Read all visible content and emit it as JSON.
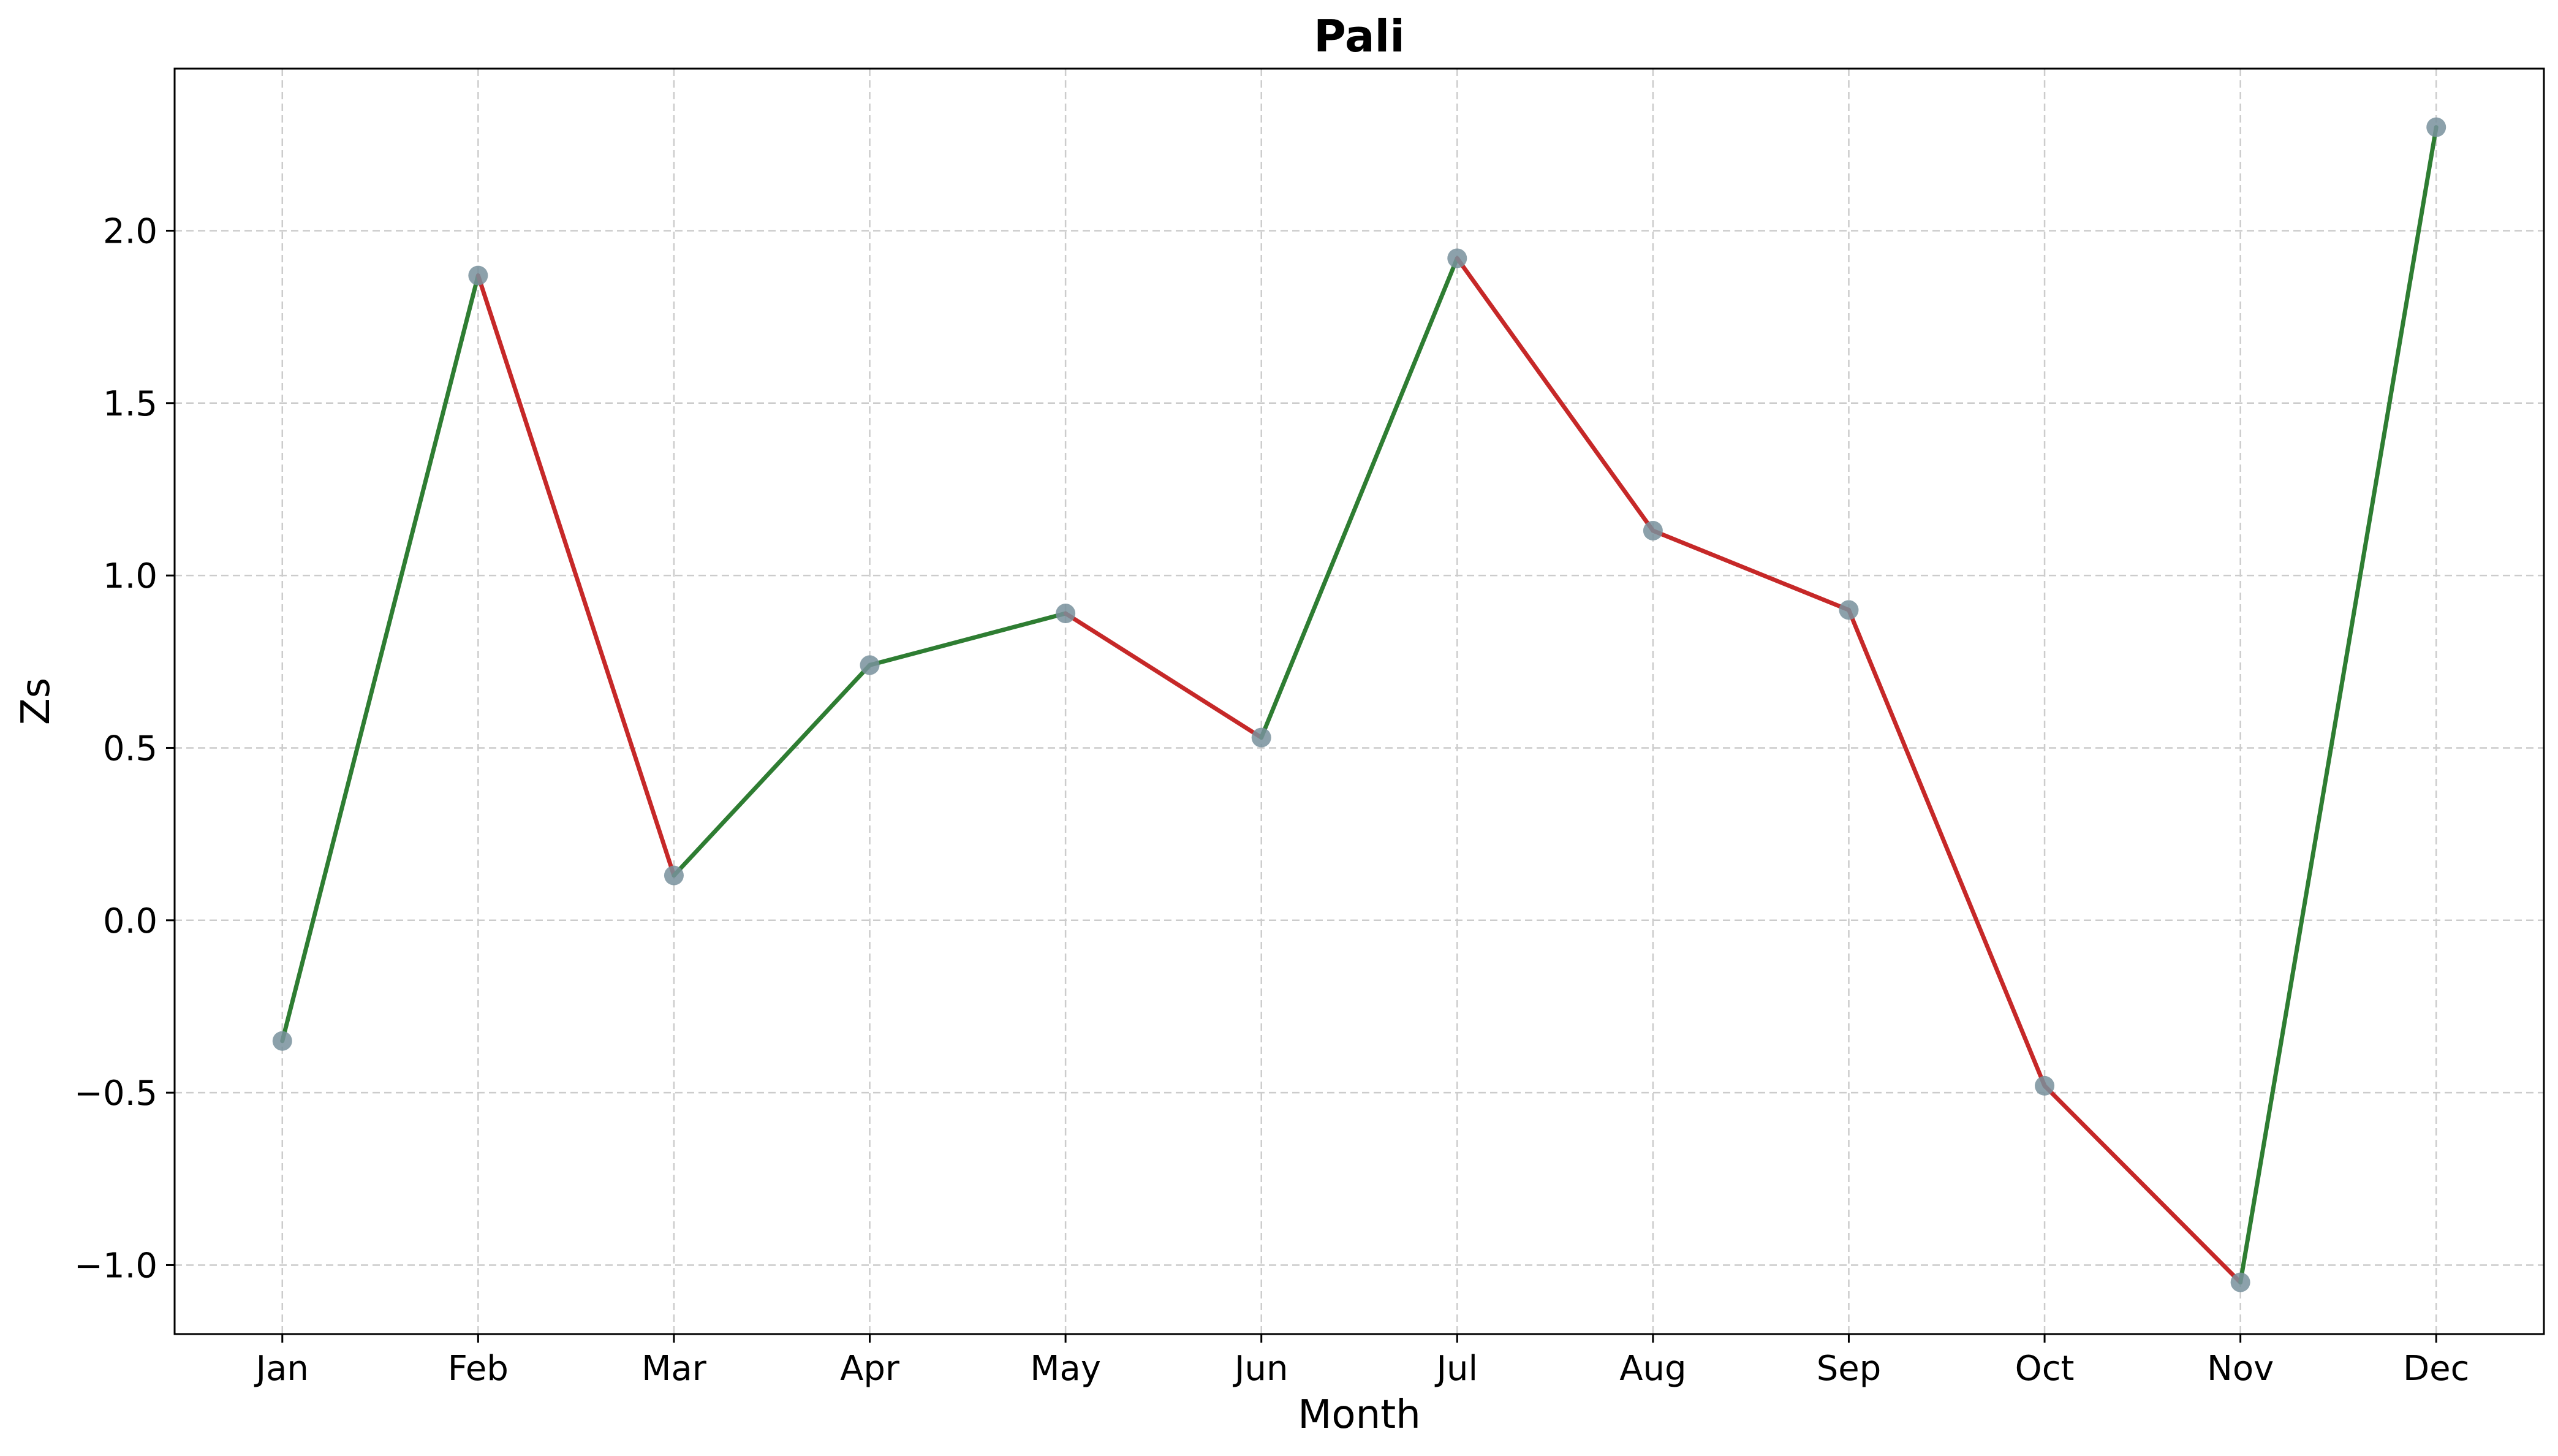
{
  "chart_data": {
    "type": "line",
    "title": "Pali",
    "xlabel": "Month",
    "ylabel": "Zs",
    "categories": [
      "Jan",
      "Feb",
      "Mar",
      "Apr",
      "May",
      "Jun",
      "Jul",
      "Aug",
      "Sep",
      "Oct",
      "Nov",
      "Dec"
    ],
    "series": [
      {
        "values": [
          -0.35,
          1.87,
          0.13,
          0.74,
          0.89,
          0.53,
          1.92,
          1.13,
          0.9,
          -0.48,
          -1.05,
          2.3
        ]
      }
    ],
    "ylim": [
      -1.2,
      2.47
    ],
    "yticks": [
      -1.0,
      -0.5,
      0.0,
      0.5,
      1.0,
      1.5,
      2.0
    ],
    "ytick_labels": [
      "−1.0",
      "−0.5",
      "0.0",
      "0.5",
      "1.0",
      "1.5",
      "2.0"
    ],
    "grid": true,
    "colors": {
      "increase": "#2e7d32",
      "decrease": "#c62828",
      "marker": "#78909c",
      "grid": "#cccccc",
      "axis": "#000000"
    }
  }
}
